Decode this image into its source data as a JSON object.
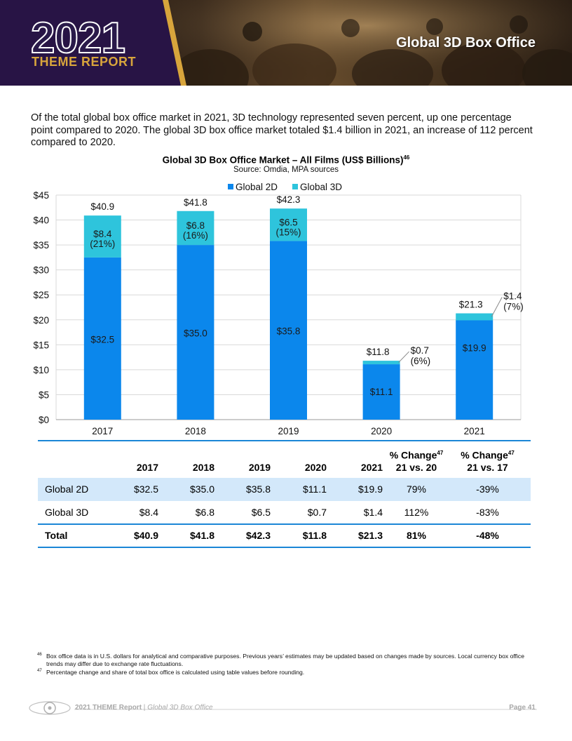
{
  "header": {
    "year": "2021",
    "report": "THEME REPORT",
    "section_title": "Global 3D Box Office"
  },
  "intro": "Of the total global box office market in 2021, 3D technology represented seven percent, up one percentage point compared to 2020. The global 3D box office market totaled $1.4 billion in 2021, an increase of 112 percent compared to 2020.",
  "chart_heading": {
    "title": "Global 3D Box Office Market – All Films (US$ Billions)",
    "title_note": "46",
    "source": "Source: Omdia, MPA sources"
  },
  "chart_data": {
    "type": "bar",
    "stacked": true,
    "categories": [
      "2017",
      "2018",
      "2019",
      "2020",
      "2021"
    ],
    "series": [
      {
        "name": "Global 2D",
        "values": [
          32.5,
          35.0,
          35.8,
          11.1,
          19.9
        ],
        "labels": [
          "$32.5",
          "$35.0",
          "$35.8",
          "$11.1",
          "$19.9"
        ]
      },
      {
        "name": "Global 3D",
        "values": [
          8.4,
          6.8,
          6.5,
          0.7,
          1.4
        ],
        "labels": [
          "$8.4",
          "$6.8",
          "$6.5",
          "$0.7",
          "$1.4"
        ],
        "shares": [
          "(21%)",
          "(16%)",
          "(15%)",
          "(6%)",
          "(7%)"
        ]
      }
    ],
    "totals": [
      40.9,
      41.8,
      42.3,
      11.8,
      21.3
    ],
    "total_labels": [
      "$40.9",
      "$41.8",
      "$42.3",
      "$11.8",
      "$21.3"
    ],
    "ylim": [
      0,
      45
    ],
    "yticks": [
      0,
      5,
      10,
      15,
      20,
      25,
      30,
      35,
      40,
      45
    ],
    "ytick_labels": [
      "$0",
      "$5",
      "$10",
      "$15",
      "$20",
      "$25",
      "$30",
      "$35",
      "$40",
      "$45"
    ],
    "grid": true,
    "legend": "top-center",
    "colors": {
      "2d": "#0b87ec",
      "3d": "#2ec4dc"
    }
  },
  "table": {
    "headers": [
      "2017",
      "2018",
      "2019",
      "2020",
      "2021"
    ],
    "change_hdr": "% Change",
    "change_note": "47",
    "change_sub_a": "21 vs. 20",
    "change_sub_b": "21 vs. 17",
    "rows": [
      {
        "label": "Global 2D",
        "cells": [
          "$32.5",
          "$35.0",
          "$35.8",
          "$11.1",
          "$19.9",
          "79%",
          "-39%"
        ]
      },
      {
        "label": "Global 3D",
        "cells": [
          "$8.4",
          "$6.8",
          "$6.5",
          "$0.7",
          "$1.4",
          "112%",
          "-83%"
        ]
      },
      {
        "label": "Total",
        "cells": [
          "$40.9",
          "$41.8",
          "$42.3",
          "$11.8",
          "$21.3",
          "81%",
          "-48%"
        ]
      }
    ]
  },
  "footnotes": [
    {
      "num": "46",
      "text": "Box office data is in U.S. dollars for analytical and comparative purposes. Previous years’ estimates may be updated based on changes made by sources. Local currency box office trends may differ due to exchange rate fluctuations."
    },
    {
      "num": "47",
      "text": "Percentage change and share of total box office is calculated using table values before rounding."
    }
  ],
  "footer": {
    "report": "2021 THEME Report",
    "separator": " | ",
    "section": "Global 3D Box Office",
    "page": "Page 41"
  }
}
